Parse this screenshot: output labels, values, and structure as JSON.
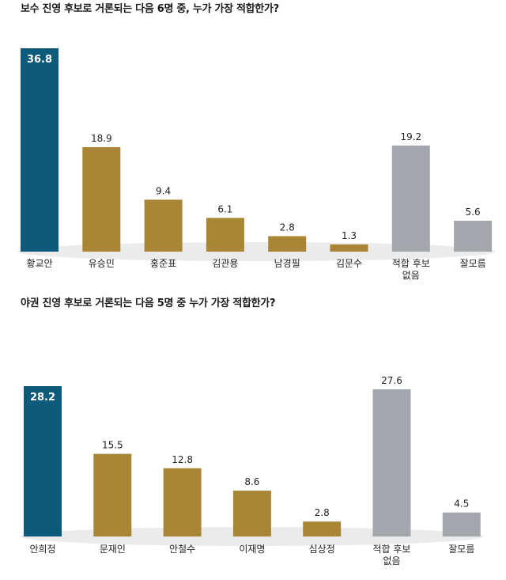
{
  "colors": {
    "highlight": "#0d5a7a",
    "candidate": "#a98536",
    "other": "#a3a6ab",
    "shadow": "#e6e6e6"
  },
  "chart_data": [
    {
      "type": "bar",
      "title": "보수 진영 후보로 거론되는 다음 6명 중, 누가 가장 적합한가?",
      "categories": [
        "황교안",
        "유승민",
        "홍준표",
        "김관용",
        "남경필",
        "김문수",
        "적합 후보 없음",
        "잘모름"
      ],
      "values": [
        36.8,
        18.9,
        9.4,
        6.1,
        2.8,
        1.3,
        19.2,
        5.6
      ],
      "value_labels": [
        "36.8",
        "18.9",
        "9.4",
        "6.1",
        "2.8",
        "1.3",
        "19.2",
        "5.6"
      ],
      "color_groups": [
        "highlight",
        "candidate",
        "candidate",
        "candidate",
        "candidate",
        "candidate",
        "other",
        "other"
      ],
      "xlabel": "",
      "ylabel": "",
      "ylim": [
        0,
        36.8
      ],
      "grid": false
    },
    {
      "type": "bar",
      "title": "야권 진영 후보로 거론되는 다음 5명 중 누가 가장 적합한가?",
      "categories": [
        "안희정",
        "문재인",
        "안철수",
        "이재명",
        "심상정",
        "적합 후보 없음",
        "잘모름"
      ],
      "values": [
        28.2,
        15.5,
        12.8,
        8.6,
        2.8,
        27.6,
        4.5
      ],
      "value_labels": [
        "28.2",
        "15.5",
        "12.8",
        "8.6",
        "2.8",
        "27.6",
        "4.5"
      ],
      "color_groups": [
        "highlight",
        "candidate",
        "candidate",
        "candidate",
        "candidate",
        "other",
        "other"
      ],
      "xlabel": "",
      "ylabel": "",
      "ylim": [
        0,
        28.2
      ],
      "grid": false
    }
  ]
}
